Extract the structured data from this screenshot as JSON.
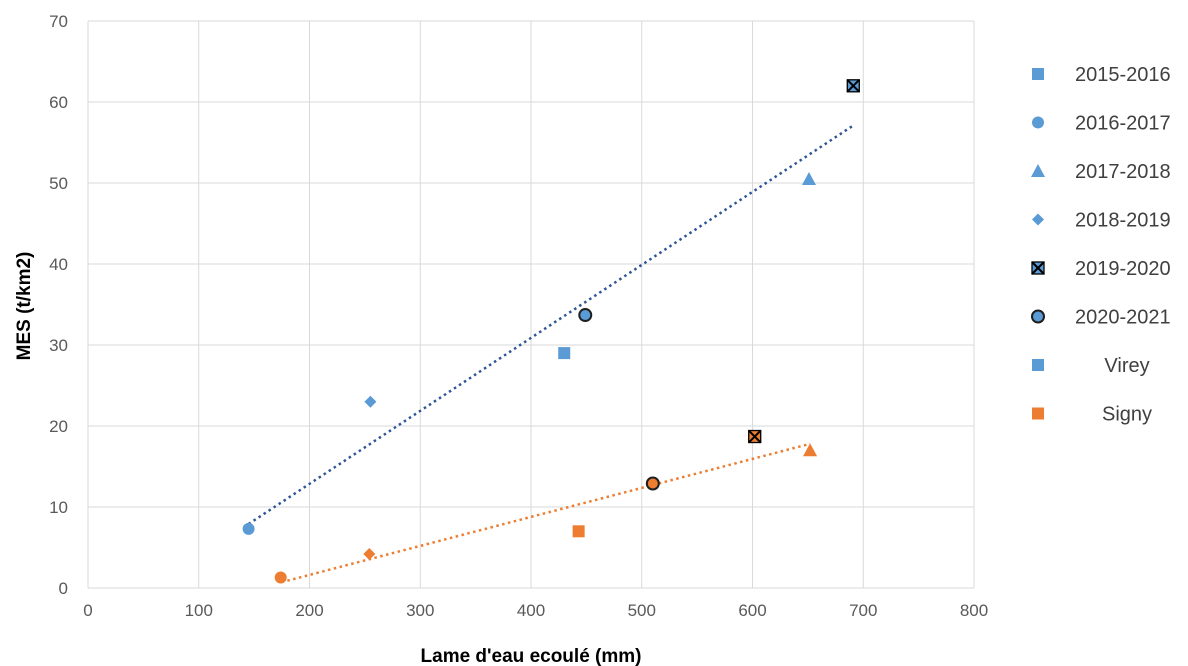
{
  "chart_data": {
    "type": "scatter",
    "title": "",
    "xlabel": "Lame d'eau ecoulé (mm)",
    "ylabel": "MES (t/km2)",
    "xlim": [
      0,
      800
    ],
    "ylim": [
      0,
      70
    ],
    "xticks": [
      0,
      100,
      200,
      300,
      400,
      500,
      600,
      700,
      800
    ],
    "yticks": [
      0,
      10,
      20,
      30,
      40,
      50,
      60,
      70
    ],
    "grid": true,
    "legend_position": "right",
    "colors": {
      "Virey": "#5B9BD5",
      "Signy": "#ED7D31",
      "trend_Virey": "#2F5597",
      "trend_Signy": "#ED7D31"
    },
    "legend": [
      {
        "label": "2015-2016",
        "marker": "square"
      },
      {
        "label": "2016-2017",
        "marker": "circle"
      },
      {
        "label": "2017-2018",
        "marker": "triangle"
      },
      {
        "label": "2018-2019",
        "marker": "diamond"
      },
      {
        "label": "2019-2020",
        "marker": "xsquare"
      },
      {
        "label": "2020-2021",
        "marker": "ocircle"
      },
      {
        "label": "Virey",
        "marker": "square",
        "color": "#5B9BD5"
      },
      {
        "label": "Signy",
        "marker": "square",
        "color": "#ED7D31"
      }
    ],
    "series": [
      {
        "name": "Virey",
        "color": "#5B9BD5",
        "points": [
          {
            "year": "2015-2016",
            "marker": "square",
            "x": 430,
            "y": 29
          },
          {
            "year": "2016-2017",
            "marker": "circle",
            "x": 145,
            "y": 7.3
          },
          {
            "year": "2017-2018",
            "marker": "triangle",
            "x": 651,
            "y": 50.5
          },
          {
            "year": "2018-2019",
            "marker": "diamond",
            "x": 255,
            "y": 23
          },
          {
            "year": "2019-2020",
            "marker": "xsquare",
            "x": 691,
            "y": 62
          },
          {
            "year": "2020-2021",
            "marker": "ocircle",
            "x": 449,
            "y": 33.7
          }
        ],
        "trendline": {
          "x": [
            145,
            691
          ],
          "y": [
            7.9,
            57.1
          ]
        }
      },
      {
        "name": "Signy",
        "color": "#ED7D31",
        "points": [
          {
            "year": "2015-2016",
            "marker": "square",
            "x": 443,
            "y": 7
          },
          {
            "year": "2016-2017",
            "marker": "circle",
            "x": 174,
            "y": 1.3
          },
          {
            "year": "2017-2018",
            "marker": "triangle",
            "x": 652,
            "y": 17
          },
          {
            "year": "2018-2019",
            "marker": "diamond",
            "x": 254,
            "y": 4.2
          },
          {
            "year": "2019-2020",
            "marker": "xsquare",
            "x": 602,
            "y": 18.7
          },
          {
            "year": "2020-2021",
            "marker": "ocircle",
            "x": 510,
            "y": 12.9
          }
        ],
        "trendline": {
          "x": [
            180,
            652
          ],
          "y": [
            0.9,
            17.8
          ]
        }
      }
    ]
  }
}
